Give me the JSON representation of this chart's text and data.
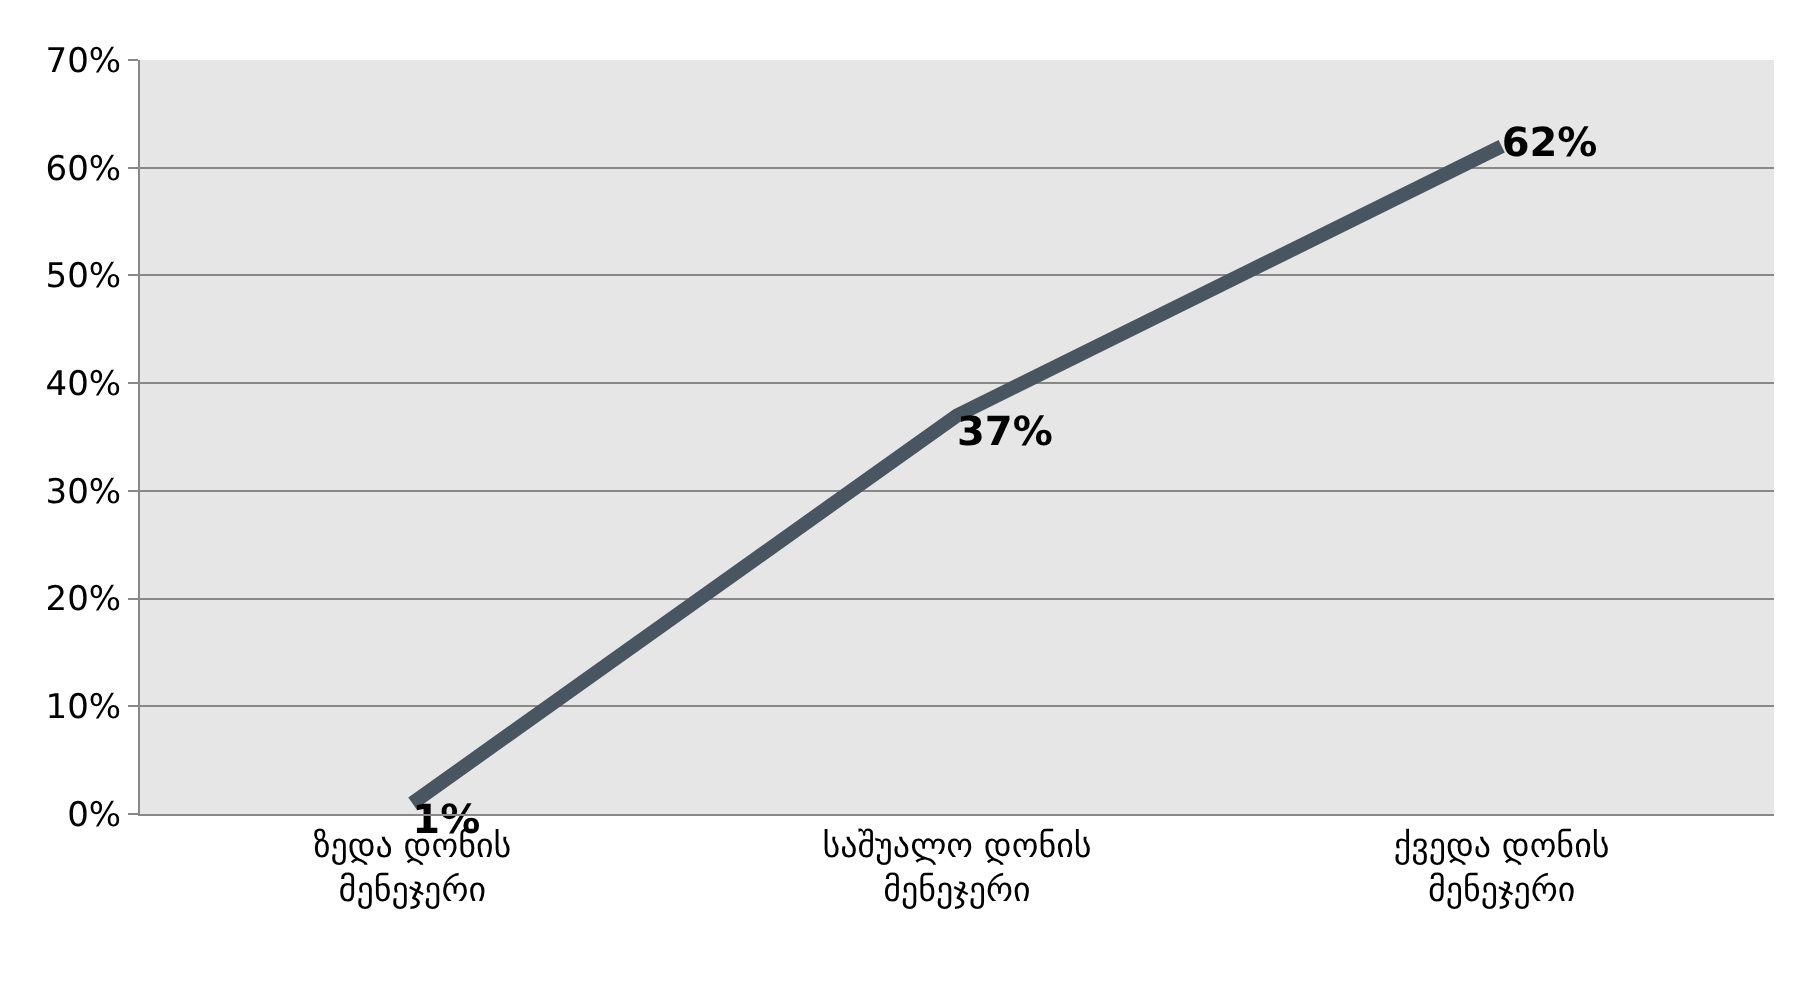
{
  "chart_data": {
    "type": "line",
    "categories": [
      "ზედა დონის მენეჯერი",
      "საშუალო დონის მენეჯერი",
      "ქვედა დონის მენეჯერი"
    ],
    "values": [
      1,
      37,
      62
    ],
    "value_labels": [
      "1%",
      "37%",
      "62%"
    ],
    "color": "#4a5562",
    "ylim": [
      0,
      70
    ],
    "yticks": [
      {
        "value": 0,
        "label": "0%"
      },
      {
        "value": 10,
        "label": "10%"
      },
      {
        "value": 20,
        "label": "20%"
      },
      {
        "value": 30,
        "label": "30%"
      },
      {
        "value": 40,
        "label": "40%"
      },
      {
        "value": 50,
        "label": "50%"
      },
      {
        "value": 60,
        "label": "60%"
      },
      {
        "value": 70,
        "label": "70%"
      }
    ],
    "grid": "y",
    "marker": "none",
    "line_style": "solid"
  }
}
